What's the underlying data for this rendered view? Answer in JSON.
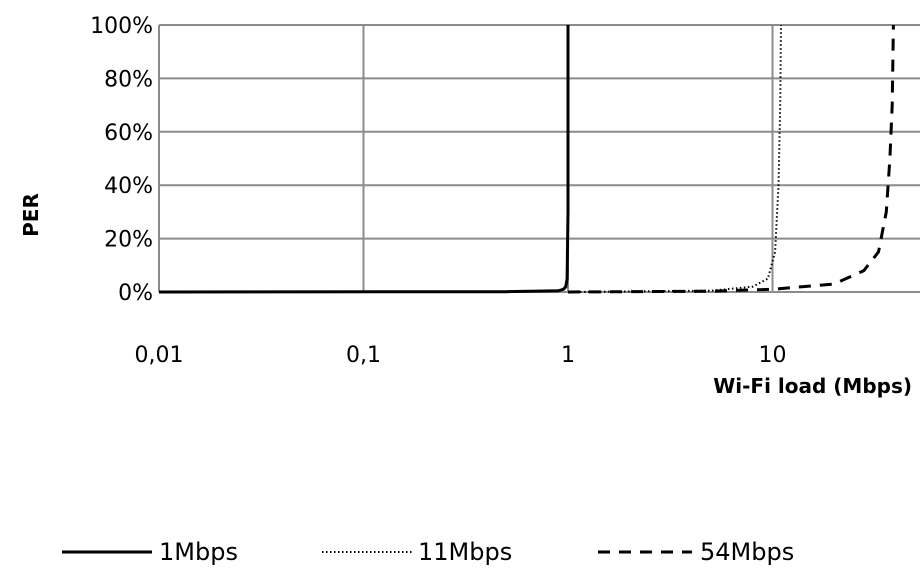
{
  "chart_data": {
    "type": "line",
    "xlabel": "Wi-Fi load (Mbps)",
    "ylabel": "PER",
    "x_scale": "log",
    "xlim": [
      0.01,
      40
    ],
    "ylim": [
      0,
      100
    ],
    "grid": true,
    "legend_position": "bottom",
    "x_ticks": [
      {
        "value": 0.01,
        "label": "0,01"
      },
      {
        "value": 0.1,
        "label": "0,1"
      },
      {
        "value": 1,
        "label": "1"
      },
      {
        "value": 10,
        "label": "10"
      }
    ],
    "y_ticks": [
      {
        "value": 0,
        "label": "0%"
      },
      {
        "value": 20,
        "label": "20%"
      },
      {
        "value": 40,
        "label": "40%"
      },
      {
        "value": 60,
        "label": "60%"
      },
      {
        "value": 80,
        "label": "80%"
      },
      {
        "value": 100,
        "label": "100%"
      }
    ],
    "series": [
      {
        "name": "1Mbps",
        "style": "solid",
        "points": [
          [
            0.01,
            0
          ],
          [
            0.5,
            0.1
          ],
          [
            0.9,
            0.5
          ],
          [
            0.95,
            1
          ],
          [
            0.975,
            2
          ],
          [
            0.99,
            5
          ],
          [
            1.0,
            30
          ],
          [
            1.0,
            100
          ]
        ]
      },
      {
        "name": "11Mbps",
        "style": "dotted",
        "points": [
          [
            1,
            0
          ],
          [
            5,
            0.5
          ],
          [
            8,
            2
          ],
          [
            9.5,
            5
          ],
          [
            10.3,
            15
          ],
          [
            10.7,
            40
          ],
          [
            10.9,
            70
          ],
          [
            11,
            100
          ]
        ]
      },
      {
        "name": "54Mbps",
        "style": "dashed",
        "points": [
          [
            1,
            0
          ],
          [
            5,
            0.3
          ],
          [
            10,
            1
          ],
          [
            20,
            3
          ],
          [
            28,
            8
          ],
          [
            33,
            15
          ],
          [
            36,
            30
          ],
          [
            37.5,
            50
          ],
          [
            38.5,
            70
          ],
          [
            39,
            100
          ]
        ]
      }
    ]
  }
}
